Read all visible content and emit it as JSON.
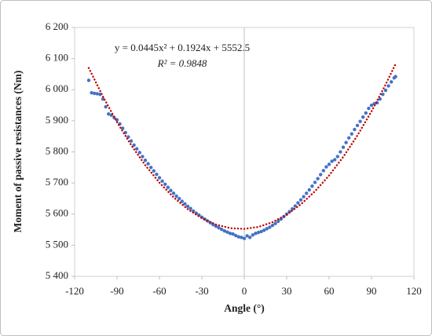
{
  "chart_data": {
    "type": "scatter",
    "xlabel": "Angle  (°)",
    "ylabel": "Moment of passive resistances  (Nm)",
    "annotations": [
      "y = 0.0445x² + 0.1924x + 5552.5",
      "R² = 0.9848"
    ],
    "xlim": [
      -120,
      120
    ],
    "xticks": [
      -120,
      -90,
      -60,
      -30,
      0,
      30,
      60,
      90,
      120
    ],
    "ylim": [
      5400,
      6200
    ],
    "yticks": [
      {
        "value": 5400,
        "label": "5 400"
      },
      {
        "value": 5500,
        "label": "5 500"
      },
      {
        "value": 5600,
        "label": "5 600"
      },
      {
        "value": 5700,
        "label": "5 700"
      },
      {
        "value": 5800,
        "label": "5 800"
      },
      {
        "value": 5900,
        "label": "5 900"
      },
      {
        "value": 6000,
        "label": "6 000"
      },
      {
        "value": 6100,
        "label": "6 100"
      },
      {
        "value": 6200,
        "label": "6 200"
      }
    ],
    "series": [
      {
        "color": "#4472c4",
        "style": "markers",
        "x": [
          -110,
          -108,
          -106,
          -104,
          -102,
          -100,
          -98,
          -96,
          -94,
          -92,
          -90,
          -88,
          -86,
          -84,
          -82,
          -80,
          -78,
          -76,
          -74,
          -72,
          -70,
          -68,
          -66,
          -64,
          -62,
          -60,
          -58,
          -56,
          -54,
          -52,
          -50,
          -48,
          -46,
          -44,
          -42,
          -40,
          -38,
          -36,
          -34,
          -32,
          -30,
          -28,
          -26,
          -24,
          -22,
          -20,
          -18,
          -16,
          -14,
          -12,
          -10,
          -8,
          -6,
          -4,
          -2,
          0,
          2,
          4,
          6,
          8,
          10,
          12,
          14,
          16,
          18,
          20,
          22,
          24,
          26,
          28,
          30,
          32,
          34,
          36,
          38,
          40,
          42,
          44,
          46,
          48,
          50,
          52,
          54,
          56,
          58,
          60,
          62,
          64,
          66,
          68,
          70,
          72,
          74,
          76,
          78,
          80,
          82,
          84,
          86,
          88,
          90,
          92,
          94,
          96,
          98,
          100,
          102,
          104,
          106,
          107
        ],
        "values": [
          6030,
          5990,
          5988,
          5987,
          5985,
          5970,
          5945,
          5922,
          5918,
          5910,
          5903,
          5890,
          5876,
          5862,
          5848,
          5835,
          5822,
          5810,
          5798,
          5785,
          5773,
          5762,
          5750,
          5739,
          5728,
          5717,
          5706,
          5696,
          5686,
          5676,
          5667,
          5658,
          5650,
          5641,
          5633,
          5625,
          5618,
          5610,
          5603,
          5597,
          5590,
          5584,
          5578,
          5572,
          5566,
          5561,
          5556,
          5551,
          5546,
          5542,
          5538,
          5536,
          5531,
          5527,
          5525,
          5522,
          5530,
          5525,
          5533,
          5538,
          5541,
          5544,
          5548,
          5553,
          5558,
          5564,
          5570,
          5577,
          5584,
          5592,
          5600,
          5608,
          5617,
          5626,
          5636,
          5646,
          5656,
          5667,
          5678,
          5690,
          5702,
          5714,
          5727,
          5740,
          5752,
          5760,
          5770,
          5775,
          5785,
          5800,
          5815,
          5830,
          5845,
          5858,
          5872,
          5885,
          5898,
          5912,
          5925,
          5940,
          5950,
          5955,
          5958,
          5970,
          5985,
          5998,
          6012,
          6025,
          6038,
          6042
        ]
      },
      {
        "color": "#c00000",
        "style": "dotted",
        "x": [
          -110,
          -100,
          -90,
          -80,
          -70,
          -60,
          -50,
          -40,
          -30,
          -20,
          -10,
          0,
          10,
          20,
          30,
          40,
          50,
          60,
          70,
          80,
          90,
          100,
          107
        ],
        "values": [
          6069.8,
          5978.3,
          5895.6,
          5821.9,
          5757.1,
          5701.2,
          5654.1,
          5616.0,
          5586.8,
          5566.5,
          5555.0,
          5552.5,
          5558.9,
          5574.2,
          5598.3,
          5631.4,
          5673.4,
          5724.2,
          5784.0,
          5852.7,
          5930.3,
          6016.7,
          6082.6
        ]
      }
    ]
  }
}
